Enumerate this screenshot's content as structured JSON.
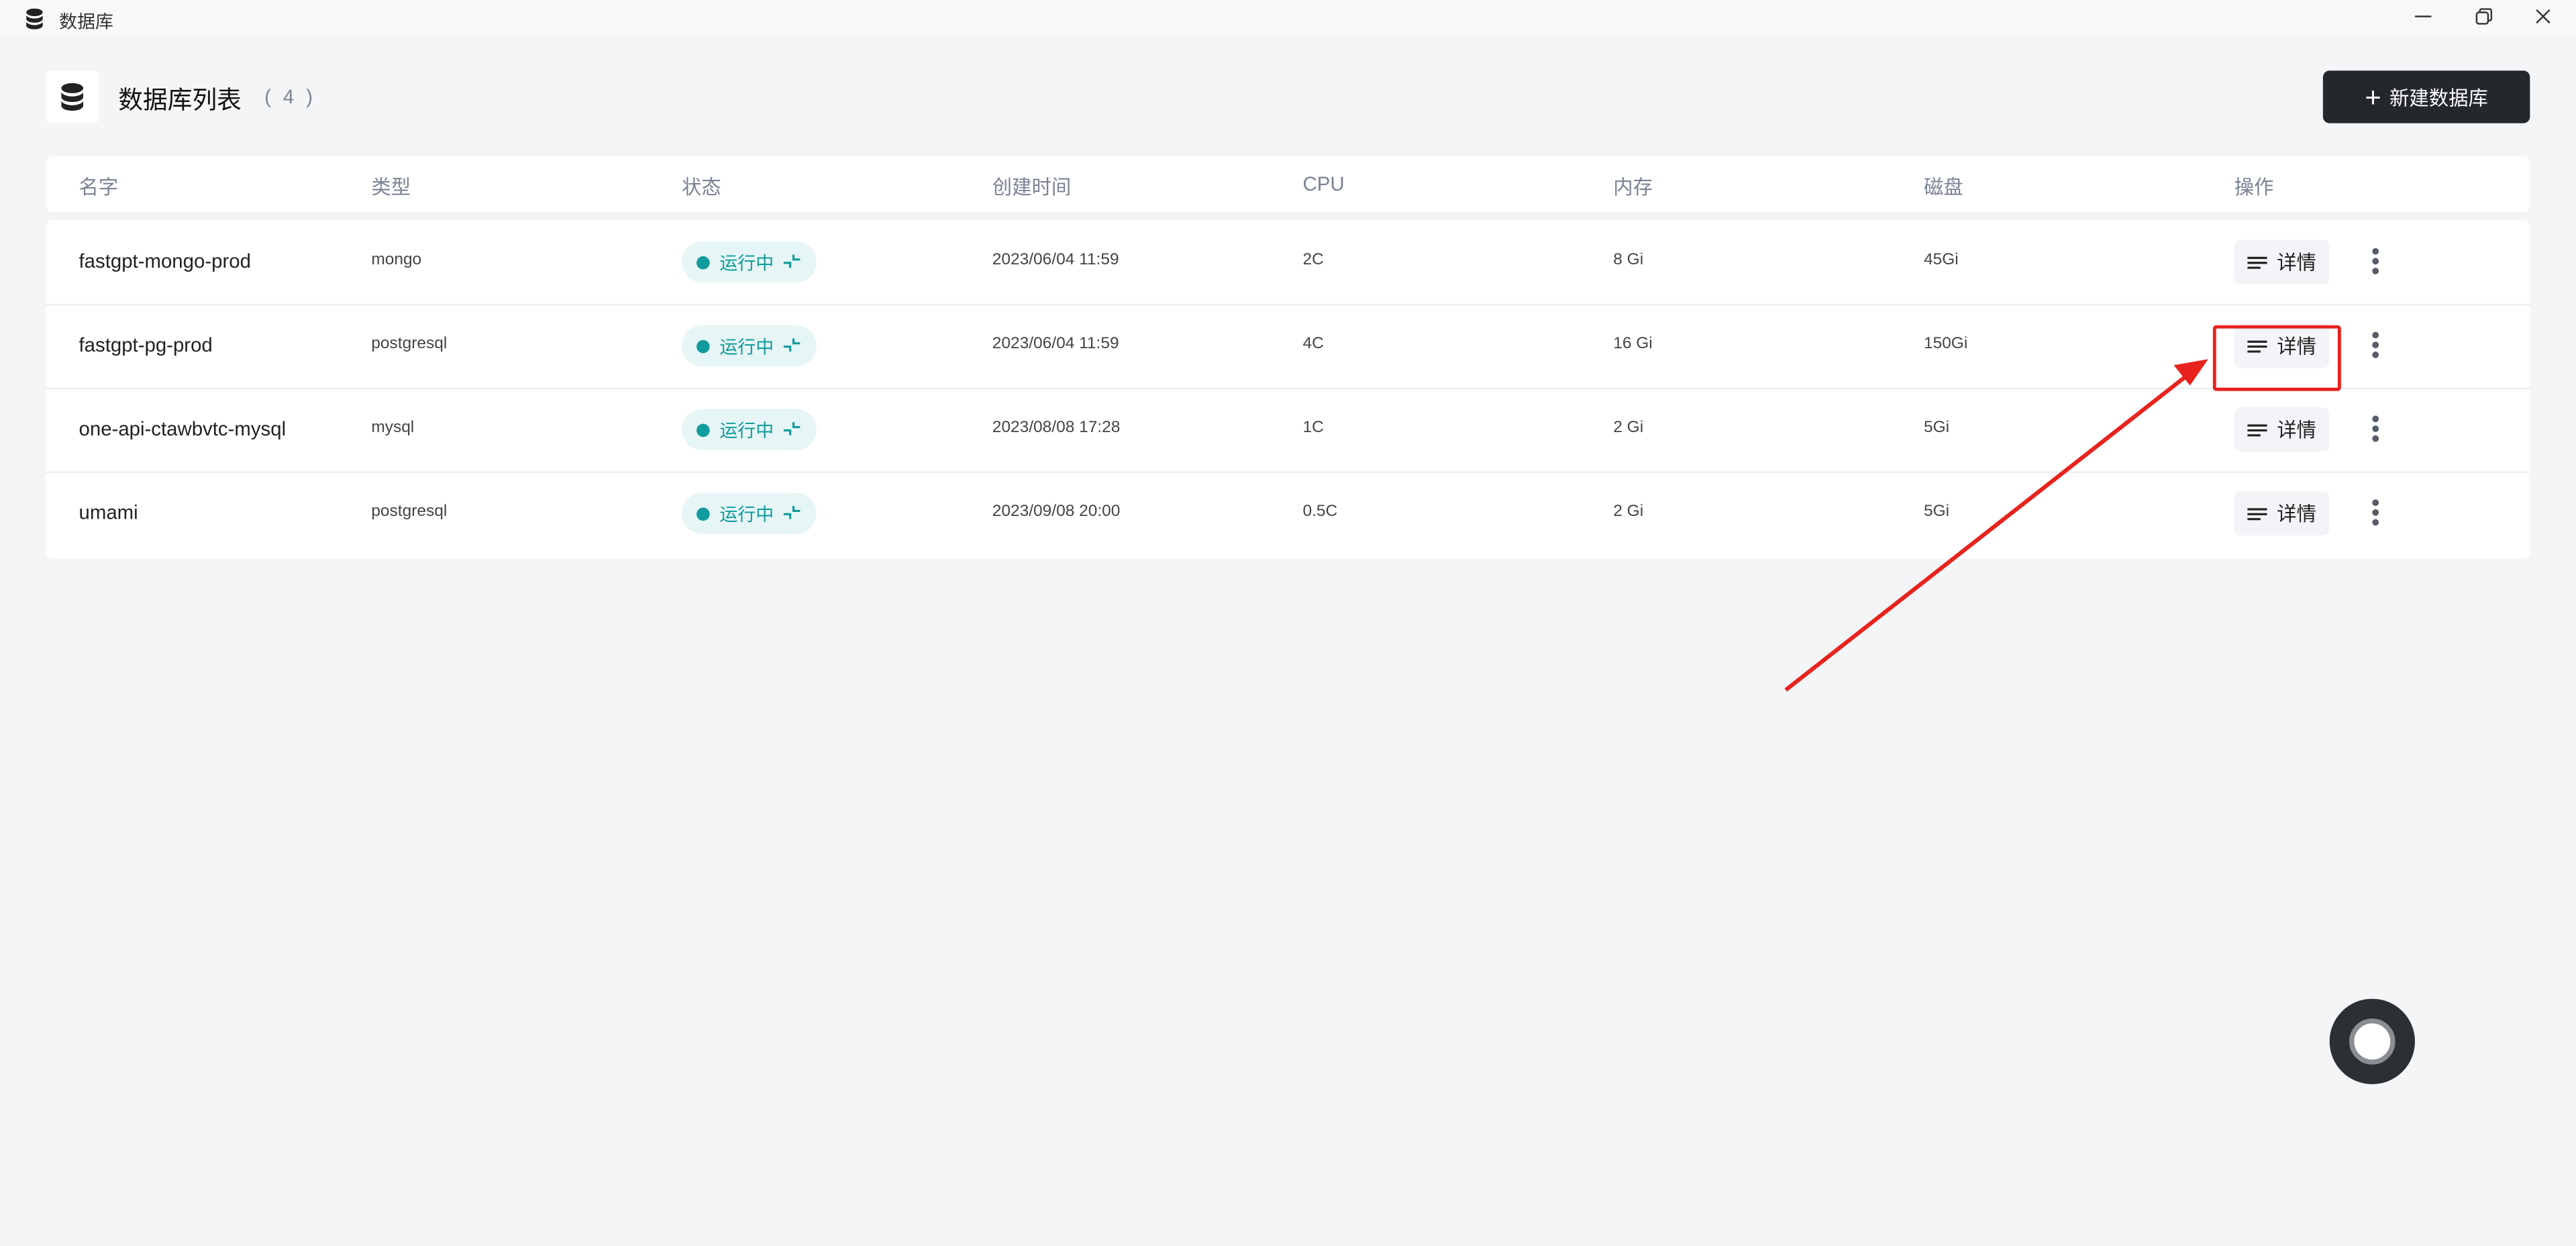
{
  "window": {
    "title": "数据库",
    "app_icon": "database-icon",
    "controls": [
      "minimize",
      "restore",
      "close"
    ]
  },
  "header": {
    "icon": "database-icon",
    "title": "数据库列表",
    "count": "( 4 )",
    "new_button": "新建数据库"
  },
  "table": {
    "columns": [
      "名字",
      "类型",
      "状态",
      "创建时间",
      "CPU",
      "内存",
      "磁盘",
      "操作"
    ],
    "rows": [
      {
        "name": "fastgpt-mongo-prod",
        "type": "mongo",
        "status": "运行中",
        "created": "2023/06/04 11:59",
        "cpu": "2C",
        "memory": "8 Gi",
        "disk": "45Gi",
        "action": "详情"
      },
      {
        "name": "fastgpt-pg-prod",
        "type": "postgresql",
        "status": "运行中",
        "created": "2023/06/04 11:59",
        "cpu": "4C",
        "memory": "16 Gi",
        "disk": "150Gi",
        "action": "详情"
      },
      {
        "name": "one-api-ctawbvtc-mysql",
        "type": "mysql",
        "status": "运行中",
        "created": "2023/08/08 17:28",
        "cpu": "1C",
        "memory": "2 Gi",
        "disk": "5Gi",
        "action": "详情"
      },
      {
        "name": "umami",
        "type": "postgresql",
        "status": "运行中",
        "created": "2023/09/08 20:00",
        "cpu": "0.5C",
        "memory": "2 Gi",
        "disk": "5Gi",
        "action": "详情"
      }
    ]
  },
  "colors": {
    "status": "#119b9c",
    "status_bg": "#e6f5f5",
    "primary_button": "#24282c",
    "annotation": "#e8231e"
  }
}
